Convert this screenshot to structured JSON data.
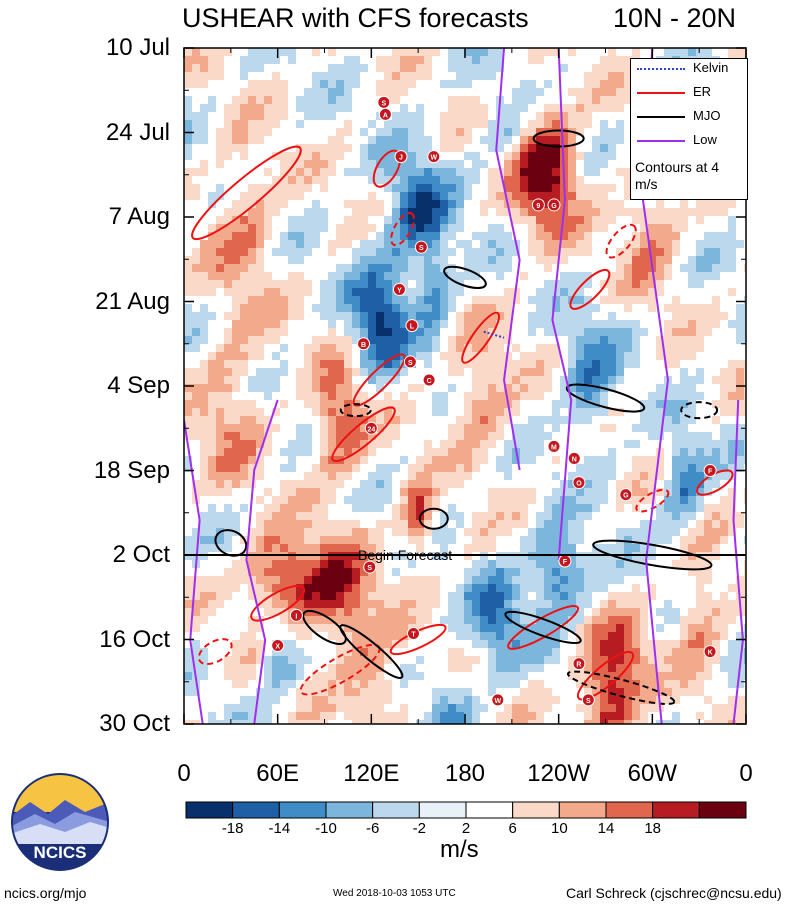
{
  "chart_data": {
    "type": "heatmap",
    "title": "USHEAR with CFS forecasts",
    "subtitle": "10N - 20N",
    "xlabel": "",
    "ylabel": "",
    "units": "m/s",
    "x_ticks": [
      "0",
      "60E",
      "120E",
      "180",
      "120W",
      "60W",
      "0"
    ],
    "x_tick_values_deg_east": [
      0,
      60,
      120,
      180,
      240,
      300,
      360
    ],
    "y_ticks": [
      "10 Jul",
      "24 Jul",
      "7 Aug",
      "21 Aug",
      "4 Sep",
      "18 Sep",
      "2 Oct",
      "16 Oct",
      "30 Oct"
    ],
    "y_tick_day_offsets": [
      0,
      14,
      28,
      42,
      56,
      70,
      84,
      98,
      112
    ],
    "forecast_start_label": "Begin Forecast",
    "forecast_start_day_offset": 84,
    "colorbar": {
      "levels": [
        "-18",
        "-14",
        "-10",
        "-6",
        "-2",
        "2",
        "6",
        "10",
        "14",
        "18"
      ],
      "colors": [
        "#08306b",
        "#1f5fa6",
        "#3f8cc6",
        "#7db6dc",
        "#bcd8ec",
        "#e8f1f8",
        "#ffffff",
        "#fbd9c8",
        "#f3a98c",
        "#e0664d",
        "#b81c23",
        "#6b0011"
      ]
    },
    "legend": {
      "entries": [
        {
          "label": "Kelvin",
          "color": "#3b3bd6"
        },
        {
          "label": "ER",
          "color": "#ee1111"
        },
        {
          "label": "MJO",
          "color": "#000000"
        },
        {
          "label": "Low",
          "color": "#a02ef0"
        }
      ],
      "note": "Contours at 4 m/s",
      "placement": "top-right"
    },
    "storm_markers": [
      {
        "label": "S",
        "lon": 128,
        "day": 9
      },
      {
        "label": "A",
        "lon": 129,
        "day": 11
      },
      {
        "label": "J",
        "lon": 139,
        "day": 18
      },
      {
        "label": "W",
        "lon": 160,
        "day": 18
      },
      {
        "label": "9",
        "lon": 227,
        "day": 26
      },
      {
        "label": "G",
        "lon": 237,
        "day": 26
      },
      {
        "label": "S",
        "lon": 152,
        "day": 33
      },
      {
        "label": "Y",
        "lon": 138,
        "day": 40
      },
      {
        "label": "L",
        "lon": 146,
        "day": 46
      },
      {
        "label": "B",
        "lon": 115,
        "day": 49
      },
      {
        "label": "S",
        "lon": 145,
        "day": 52
      },
      {
        "label": "C",
        "lon": 157,
        "day": 55
      },
      {
        "label": "24",
        "lon": 120,
        "day": 63
      },
      {
        "label": "M",
        "lon": 237,
        "day": 66
      },
      {
        "label": "N",
        "lon": 250,
        "day": 68
      },
      {
        "label": "O",
        "lon": 253,
        "day": 72
      },
      {
        "label": "F",
        "lon": 337,
        "day": 70
      },
      {
        "label": "G",
        "lon": 283,
        "day": 74
      },
      {
        "label": "S",
        "lon": 119,
        "day": 86
      },
      {
        "label": "F",
        "lon": 244,
        "day": 85
      },
      {
        "label": "I",
        "lon": 72,
        "day": 94
      },
      {
        "label": "T",
        "lon": 147,
        "day": 97
      },
      {
        "label": "X",
        "lon": 60,
        "day": 99
      },
      {
        "label": "R",
        "lon": 253,
        "day": 102
      },
      {
        "label": "S",
        "lon": 259,
        "day": 108
      },
      {
        "label": "K",
        "lon": 337,
        "day": 100
      },
      {
        "label": "W",
        "lon": 201,
        "day": 108
      }
    ]
  },
  "logo": {
    "text": "NCICS"
  },
  "footer": {
    "left": "ncics.org/mjo",
    "middle": "Wed 2018-10-03 1053 UTC",
    "right": "Carl Schreck (cjschrec@ncsu.edu)"
  },
  "colors": {
    "kelvin": "#3b3bd6",
    "er": "#ee1111",
    "mjo": "#000000",
    "low": "#a02ef0"
  }
}
